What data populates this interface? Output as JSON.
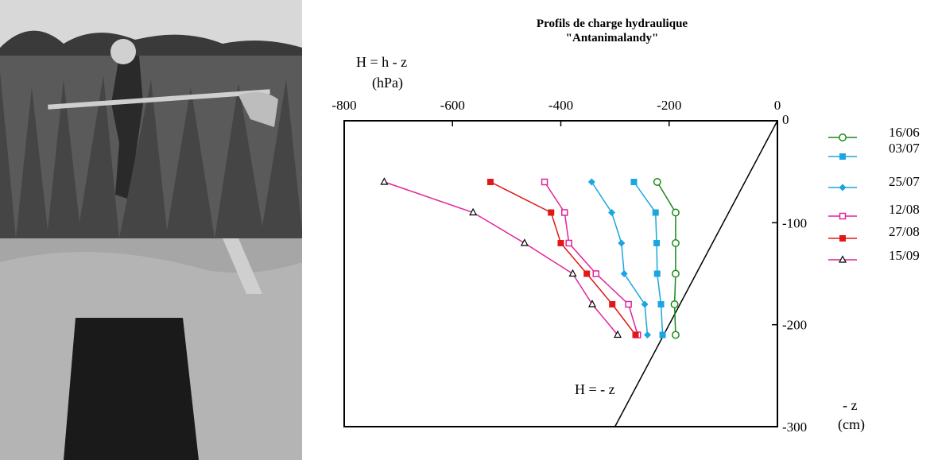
{
  "photo": {
    "description_icon": "field-pit-photo"
  },
  "chart_data": {
    "type": "line",
    "title": "Profils de charge hydraulique",
    "subtitle": "\"Antanimalandy\"",
    "xlabel_line1": "H = h - z",
    "xlabel_line2": "(hPa)",
    "ylabel_line1": "- z",
    "ylabel_line2": "(cm)",
    "xlim": [
      -800,
      0
    ],
    "ylim": [
      0,
      -300
    ],
    "x_ticks": [
      -800,
      -600,
      -400,
      -200,
      0
    ],
    "y_ticks": [
      0,
      -100,
      -200,
      -300
    ],
    "reference_line_label": "H = - z",
    "reference_line": {
      "x": [
        0,
        -300
      ],
      "y": [
        0,
        -300
      ]
    },
    "legend_position": "right",
    "series": [
      {
        "name": "16/06",
        "color": "#1a8a1a",
        "marker": "circle-open",
        "x": [
          -222,
          -188,
          -188,
          -188,
          -190,
          -188
        ],
        "y": [
          -60,
          -90,
          -120,
          -150,
          -180,
          -210
        ]
      },
      {
        "name": "03/07",
        "color": "#1aa6e0",
        "marker": "square-filled",
        "x": [
          -265,
          -225,
          -223,
          -222,
          -215,
          -212
        ],
        "y": [
          -60,
          -90,
          -120,
          -150,
          -180,
          -210
        ]
      },
      {
        "name": "25/07",
        "color": "#1aa6e0",
        "marker": "diamond-filled",
        "x": [
          -343,
          -306,
          -288,
          -283,
          -245,
          -240
        ],
        "y": [
          -60,
          -90,
          -120,
          -150,
          -180,
          -210
        ]
      },
      {
        "name": "12/08",
        "color": "#e0249a",
        "marker": "square-open",
        "x": [
          -430,
          -393,
          -385,
          -335,
          -275,
          -258
        ],
        "y": [
          -60,
          -90,
          -120,
          -150,
          -180,
          -210
        ]
      },
      {
        "name": "27/08",
        "color": "#e01818",
        "marker": "square-filled",
        "x": [
          -530,
          -418,
          -400,
          -352,
          -305,
          -262
        ],
        "y": [
          -60,
          -90,
          -120,
          -150,
          -180,
          -210
        ]
      },
      {
        "name": "15/09",
        "color": "#e0249a",
        "marker": "triangle-open",
        "x": [
          -726,
          -562,
          -467,
          -378,
          -342,
          -295
        ],
        "y": [
          -60,
          -90,
          -120,
          -150,
          -180,
          -210
        ]
      }
    ]
  }
}
